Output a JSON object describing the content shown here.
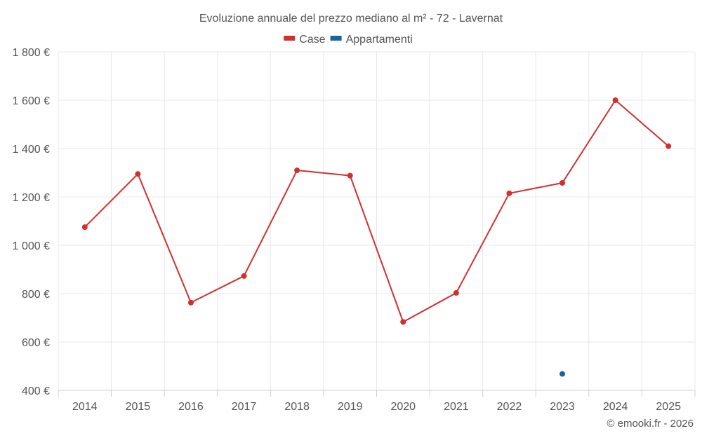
{
  "chart_data": {
    "type": "line",
    "title": "Evoluzione annuale del prezzo mediano al m² - 72 - Lavernat",
    "x": [
      "2014",
      "2015",
      "2016",
      "2017",
      "2018",
      "2019",
      "2020",
      "2021",
      "2022",
      "2023",
      "2024",
      "2025"
    ],
    "series": [
      {
        "name": "Case",
        "color": "#d32f2f",
        "values": [
          1075,
          1295,
          763,
          873,
          1310,
          1288,
          683,
          803,
          1215,
          1258,
          1600,
          1410
        ]
      },
      {
        "name": "Appartamenti",
        "color": "#1565a0",
        "values": [
          null,
          null,
          null,
          null,
          null,
          null,
          null,
          null,
          null,
          468,
          null,
          null
        ]
      }
    ],
    "yticks": [
      400,
      600,
      800,
      1000,
      1200,
      1400,
      1600,
      1800
    ],
    "ytick_labels": [
      "400 €",
      "600 €",
      "800 €",
      "1 000 €",
      "1 200 €",
      "1 400 €",
      "1 600 €",
      "1 800 €"
    ],
    "ylim": [
      400,
      1800
    ],
    "grid": true,
    "legend_position": "top-center"
  },
  "credit": "© emooki.fr - 2026"
}
